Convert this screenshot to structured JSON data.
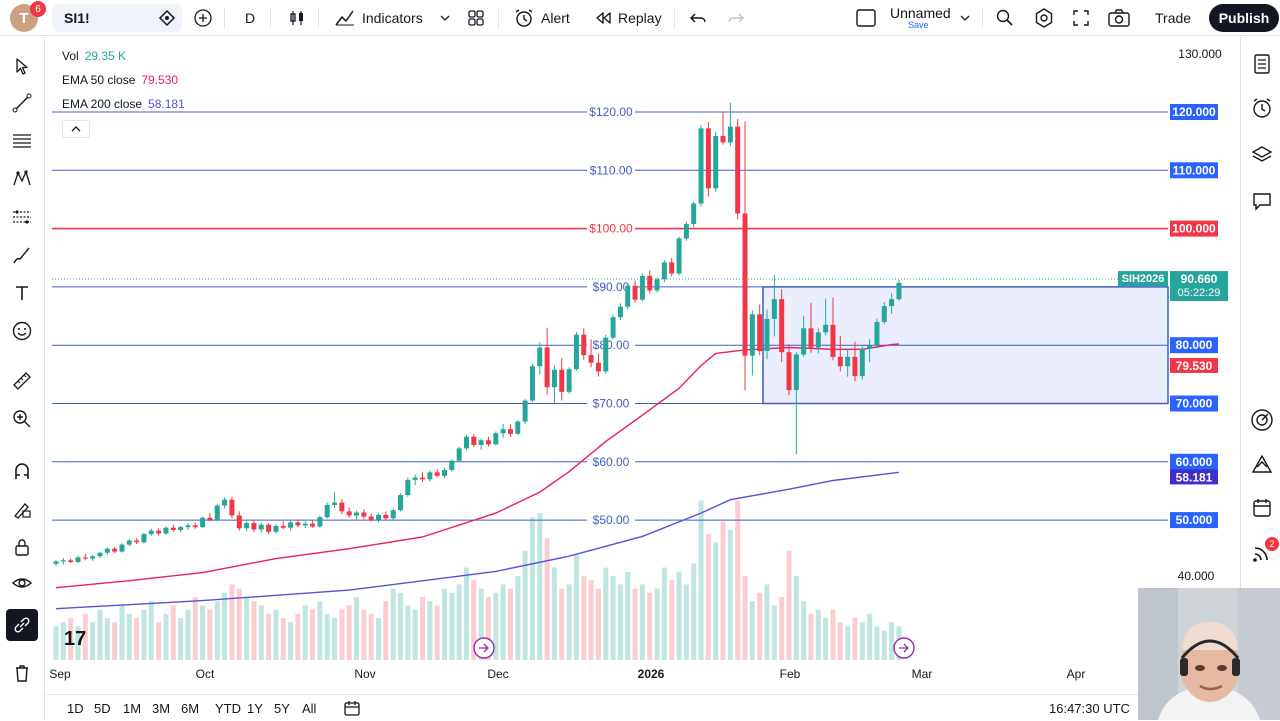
{
  "topbar": {
    "avatar_letter": "T",
    "avatar_badge": "6",
    "symbol": "SI1!",
    "interval": "D",
    "indicators_label": "Indicators",
    "alert_label": "Alert",
    "replay_label": "Replay",
    "layout_name": "Unnamed",
    "layout_sub": "Save",
    "trade_label": "Trade",
    "publish_label": "Publish"
  },
  "legend": {
    "vol_label": "Vol",
    "vol_value": "29.35 K",
    "ema50_label": "EMA 50 close",
    "ema50_value": "79.530",
    "ema200_label": "EMA 200 close",
    "ema200_value": "58.181"
  },
  "colors": {
    "up": "#26a69a",
    "down": "#f23645",
    "ema50": "#e91e63",
    "ema200": "#5b4fd6",
    "hline": "#3d5fc4",
    "red_line": "#f23645",
    "box_fill": "#e8ecfd",
    "box_border": "#3d5fc4"
  },
  "chart_data": {
    "type": "candlestick",
    "price_scale_labels": [
      "130.000",
      "40.000"
    ],
    "horizontal_lines": [
      {
        "price": 120,
        "label": "$120.00",
        "axis_label": "120.000"
      },
      {
        "price": 110,
        "label": "$110.00",
        "axis_label": "110.000"
      },
      {
        "price": 100,
        "label": "$100.00",
        "axis_label": "100.000",
        "color": "red"
      },
      {
        "price": 90,
        "label": "$90.00",
        "axis_label": "90.000"
      },
      {
        "price": 80,
        "label": "$80.00",
        "axis_label": "80.000"
      },
      {
        "price": 70,
        "label": "$70.00",
        "axis_label": "70.000"
      },
      {
        "price": 60,
        "label": "$60.00",
        "axis_label": "60.000"
      },
      {
        "price": 50,
        "label": "$50.00",
        "axis_label": "50.000"
      }
    ],
    "price_tag": {
      "symbol": "SIH2026",
      "price": "90.660",
      "countdown": "05:22:29"
    },
    "ema50_tag": "79.530",
    "ema200_tag": "58.181",
    "rectangle": {
      "price_top": 90,
      "price_bottom": 70,
      "start": "Jan 26",
      "end": "right edge"
    },
    "time_labels": [
      "Sep",
      "Oct",
      "Nov",
      "Dec",
      "2026",
      "Feb",
      "Mar",
      "Apr"
    ],
    "candles": [
      [
        42.5,
        43.2,
        42.1,
        42.9
      ],
      [
        42.9,
        43.5,
        42.4,
        43.1
      ],
      [
        43.1,
        43.4,
        42.6,
        42.8
      ],
      [
        42.8,
        43.9,
        42.6,
        43.6
      ],
      [
        43.6,
        44.2,
        43.1,
        43.4
      ],
      [
        43.4,
        44.0,
        43.0,
        43.8
      ],
      [
        43.8,
        44.6,
        43.5,
        44.4
      ],
      [
        44.4,
        45.3,
        44.0,
        45.1
      ],
      [
        45.1,
        45.4,
        44.3,
        44.6
      ],
      [
        44.6,
        46.0,
        44.4,
        45.8
      ],
      [
        45.8,
        46.8,
        45.5,
        46.5
      ],
      [
        46.5,
        46.9,
        45.9,
        46.2
      ],
      [
        46.2,
        47.8,
        46.0,
        47.6
      ],
      [
        47.6,
        48.5,
        47.3,
        48.2
      ],
      [
        48.2,
        48.6,
        47.4,
        47.7
      ],
      [
        47.7,
        48.9,
        47.5,
        48.7
      ],
      [
        48.7,
        49.2,
        48.0,
        48.3
      ],
      [
        48.3,
        49.0,
        47.9,
        48.8
      ],
      [
        48.8,
        49.5,
        48.3,
        49.1
      ],
      [
        49.1,
        49.6,
        48.5,
        48.8
      ],
      [
        48.8,
        50.6,
        48.6,
        50.4
      ],
      [
        50.4,
        51.2,
        49.8,
        50.0
      ],
      [
        50.0,
        52.8,
        49.8,
        52.5
      ],
      [
        52.5,
        53.9,
        52.0,
        53.5
      ],
      [
        53.5,
        54.0,
        50.3,
        50.8
      ],
      [
        50.8,
        51.5,
        48.2,
        48.6
      ],
      [
        48.6,
        49.8,
        48.1,
        49.5
      ],
      [
        49.5,
        50.0,
        48.0,
        48.4
      ],
      [
        48.4,
        49.6,
        47.9,
        49.2
      ],
      [
        49.2,
        49.5,
        47.6,
        48.0
      ],
      [
        48.0,
        49.3,
        47.7,
        49.0
      ],
      [
        49.0,
        49.8,
        48.4,
        48.7
      ],
      [
        48.7,
        50.0,
        48.2,
        49.6
      ],
      [
        49.6,
        50.1,
        48.8,
        49.1
      ],
      [
        49.1,
        49.8,
        48.6,
        49.4
      ],
      [
        49.4,
        49.9,
        48.7,
        48.9
      ],
      [
        48.9,
        50.8,
        48.7,
        50.5
      ],
      [
        50.5,
        53.0,
        50.3,
        52.6
      ],
      [
        52.6,
        54.8,
        52.1,
        53.0
      ],
      [
        53.0,
        53.6,
        51.0,
        51.5
      ],
      [
        51.5,
        52.2,
        50.4,
        50.8
      ],
      [
        50.8,
        51.6,
        50.1,
        51.3
      ],
      [
        51.3,
        51.9,
        50.2,
        50.6
      ],
      [
        50.6,
        51.1,
        49.8,
        50.0
      ],
      [
        50.0,
        51.2,
        49.6,
        50.9
      ],
      [
        50.9,
        51.5,
        50.0,
        50.3
      ],
      [
        50.3,
        52.0,
        50.0,
        51.7
      ],
      [
        51.7,
        54.6,
        51.5,
        54.3
      ],
      [
        54.3,
        57.3,
        54.0,
        56.9
      ],
      [
        56.9,
        57.8,
        56.0,
        57.3
      ],
      [
        57.3,
        58.2,
        56.5,
        57.0
      ],
      [
        57.0,
        58.5,
        56.6,
        58.2
      ],
      [
        58.2,
        58.7,
        57.3,
        57.6
      ],
      [
        57.6,
        59.0,
        57.2,
        58.6
      ],
      [
        58.6,
        60.4,
        58.3,
        60.2
      ],
      [
        60.2,
        62.6,
        60.0,
        62.3
      ],
      [
        62.3,
        64.6,
        62.0,
        64.3
      ],
      [
        64.3,
        64.8,
        62.5,
        62.9
      ],
      [
        62.9,
        64.0,
        62.1,
        63.7
      ],
      [
        63.7,
        64.3,
        62.6,
        63.0
      ],
      [
        63.0,
        65.2,
        62.8,
        64.9
      ],
      [
        64.9,
        66.5,
        64.1,
        65.6
      ],
      [
        65.6,
        66.4,
        64.3,
        64.8
      ],
      [
        64.8,
        67.2,
        64.6,
        66.9
      ],
      [
        66.9,
        70.8,
        66.5,
        70.5
      ],
      [
        70.5,
        76.8,
        70.2,
        76.4
      ],
      [
        76.4,
        80.5,
        75.0,
        79.6
      ],
      [
        79.6,
        83.0,
        71.5,
        72.8
      ],
      [
        72.8,
        76.5,
        70.0,
        75.8
      ],
      [
        75.8,
        77.8,
        70.5,
        72.0
      ],
      [
        72.0,
        76.2,
        71.7,
        75.9
      ],
      [
        75.9,
        82.3,
        75.6,
        81.8
      ],
      [
        81.8,
        82.9,
        77.5,
        78.3
      ],
      [
        78.3,
        81.0,
        76.2,
        77.0
      ],
      [
        77.0,
        78.6,
        74.6,
        75.5
      ],
      [
        75.5,
        81.8,
        75.1,
        81.3
      ],
      [
        81.3,
        85.2,
        81.0,
        84.8
      ],
      [
        84.8,
        87.2,
        84.3,
        86.6
      ],
      [
        86.6,
        90.5,
        86.2,
        90.2
      ],
      [
        90.2,
        91.1,
        87.3,
        87.8
      ],
      [
        87.8,
        92.3,
        87.5,
        91.9
      ],
      [
        91.9,
        92.8,
        88.9,
        89.4
      ],
      [
        89.4,
        91.6,
        89.0,
        91.3
      ],
      [
        91.3,
        94.6,
        90.8,
        94.2
      ],
      [
        94.2,
        95.0,
        91.8,
        92.3
      ],
      [
        92.3,
        98.6,
        92.0,
        98.3
      ],
      [
        98.3,
        101.2,
        97.9,
        100.8
      ],
      [
        100.8,
        104.6,
        100.2,
        104.3
      ],
      [
        104.3,
        117.8,
        103.8,
        117.2
      ],
      [
        117.2,
        118.3,
        105.5,
        106.9
      ],
      [
        106.9,
        116.6,
        106.3,
        115.9
      ],
      [
        115.9,
        120.0,
        114.4,
        114.8
      ],
      [
        114.8,
        121.6,
        114.2,
        117.5
      ],
      [
        117.5,
        118.8,
        101.6,
        102.6
      ],
      [
        102.6,
        118.4,
        72.3,
        78.2
      ],
      [
        78.2,
        86.0,
        74.8,
        85.3
      ],
      [
        85.3,
        87.0,
        78.3,
        79.0
      ],
      [
        79.0,
        86.1,
        77.6,
        84.5
      ],
      [
        84.5,
        92.0,
        81.5,
        87.9
      ],
      [
        87.9,
        89.6,
        77.1,
        78.8
      ],
      [
        78.8,
        80.2,
        71.4,
        72.3
      ],
      [
        72.3,
        78.8,
        61.3,
        78.4
      ],
      [
        78.4,
        85.0,
        78.0,
        82.9
      ],
      [
        82.9,
        87.3,
        78.7,
        79.6
      ],
      [
        79.6,
        82.9,
        78.6,
        82.2
      ],
      [
        82.2,
        88.0,
        81.7,
        83.5
      ],
      [
        83.5,
        88.2,
        77.4,
        78.0
      ],
      [
        78.0,
        81.6,
        75.5,
        76.4
      ],
      [
        76.4,
        79.4,
        74.6,
        78.0
      ],
      [
        78.0,
        80.6,
        73.8,
        74.7
      ],
      [
        74.7,
        79.8,
        74.1,
        79.4
      ],
      [
        79.4,
        81.0,
        77.1,
        79.9
      ],
      [
        79.9,
        84.6,
        79.5,
        84.0
      ],
      [
        84.0,
        87.4,
        83.6,
        86.7
      ],
      [
        86.7,
        88.9,
        85.4,
        87.9
      ],
      [
        87.9,
        91.2,
        87.6,
        90.7
      ]
    ],
    "ema50": [
      [
        0,
        38.4
      ],
      [
        10,
        39.6
      ],
      [
        20,
        41.0
      ],
      [
        30,
        43.4
      ],
      [
        40,
        45.1
      ],
      [
        50,
        47.1
      ],
      [
        60,
        51.2
      ],
      [
        66,
        54.8
      ],
      [
        70,
        58.3
      ],
      [
        75,
        63.5
      ],
      [
        80,
        68.0
      ],
      [
        85,
        72.6
      ],
      [
        88,
        76.5
      ],
      [
        90,
        78.6
      ],
      [
        94,
        79.2
      ],
      [
        100,
        79.6
      ],
      [
        106,
        79.3
      ],
      [
        110,
        79.3
      ],
      [
        114,
        80.1
      ],
      [
        115,
        80.2
      ]
    ],
    "ema200": [
      [
        0,
        34.8
      ],
      [
        20,
        36.2
      ],
      [
        40,
        38.0
      ],
      [
        60,
        41.2
      ],
      [
        70,
        43.8
      ],
      [
        80,
        47.2
      ],
      [
        88,
        51.2
      ],
      [
        92,
        53.5
      ],
      [
        100,
        55.3
      ],
      [
        106,
        56.8
      ],
      [
        115,
        58.2
      ]
    ],
    "volume": [
      8,
      9,
      10,
      8,
      11,
      9,
      12,
      10,
      9,
      13,
      11,
      10,
      12,
      14,
      9,
      11,
      13,
      10,
      12,
      15,
      13,
      12,
      14,
      16,
      18,
      17,
      15,
      14,
      13,
      11,
      12,
      10,
      9,
      11,
      13,
      12,
      14,
      11,
      10,
      12,
      13,
      15,
      12,
      11,
      10,
      14,
      17,
      16,
      13,
      12,
      15,
      14,
      13,
      17,
      16,
      18,
      22,
      19,
      17,
      15,
      16,
      18,
      17,
      20,
      26,
      34,
      35,
      29,
      22,
      17,
      18,
      25,
      20,
      19,
      17,
      22,
      20,
      18,
      21,
      17,
      18,
      16,
      17,
      22,
      19,
      21,
      18,
      23,
      38,
      30,
      28,
      33,
      31,
      38,
      20,
      14,
      16,
      18,
      13,
      15,
      26,
      20,
      14,
      11,
      12,
      10,
      12,
      9,
      8,
      10,
      9,
      11,
      8,
      7,
      9,
      8
    ],
    "volume_up_flags": "mixed"
  },
  "bottom": {
    "ranges": [
      "1D",
      "5D",
      "1M",
      "3M",
      "6M",
      "YTD",
      "1Y",
      "5Y",
      "All"
    ],
    "time": "16:47:30 UTC"
  },
  "icons": {
    "left": [
      "cursor-icon",
      "trendline-icon",
      "fib-icon",
      "pattern-icon",
      "measure-lines-icon",
      "brush-icon",
      "text-icon",
      "emoji-icon",
      "ruler-icon",
      "zoom-icon",
      "magnet-icon",
      "lock-draw-icon",
      "lock-icon",
      "eye-icon",
      "link-icon",
      "trash-icon"
    ],
    "right": [
      "watchlist-icon",
      "alerts-clock-icon",
      "layers-icon",
      "chat-icon",
      "target-icon",
      "ideas-icon",
      "calendar-icon",
      "signal-icon"
    ]
  }
}
